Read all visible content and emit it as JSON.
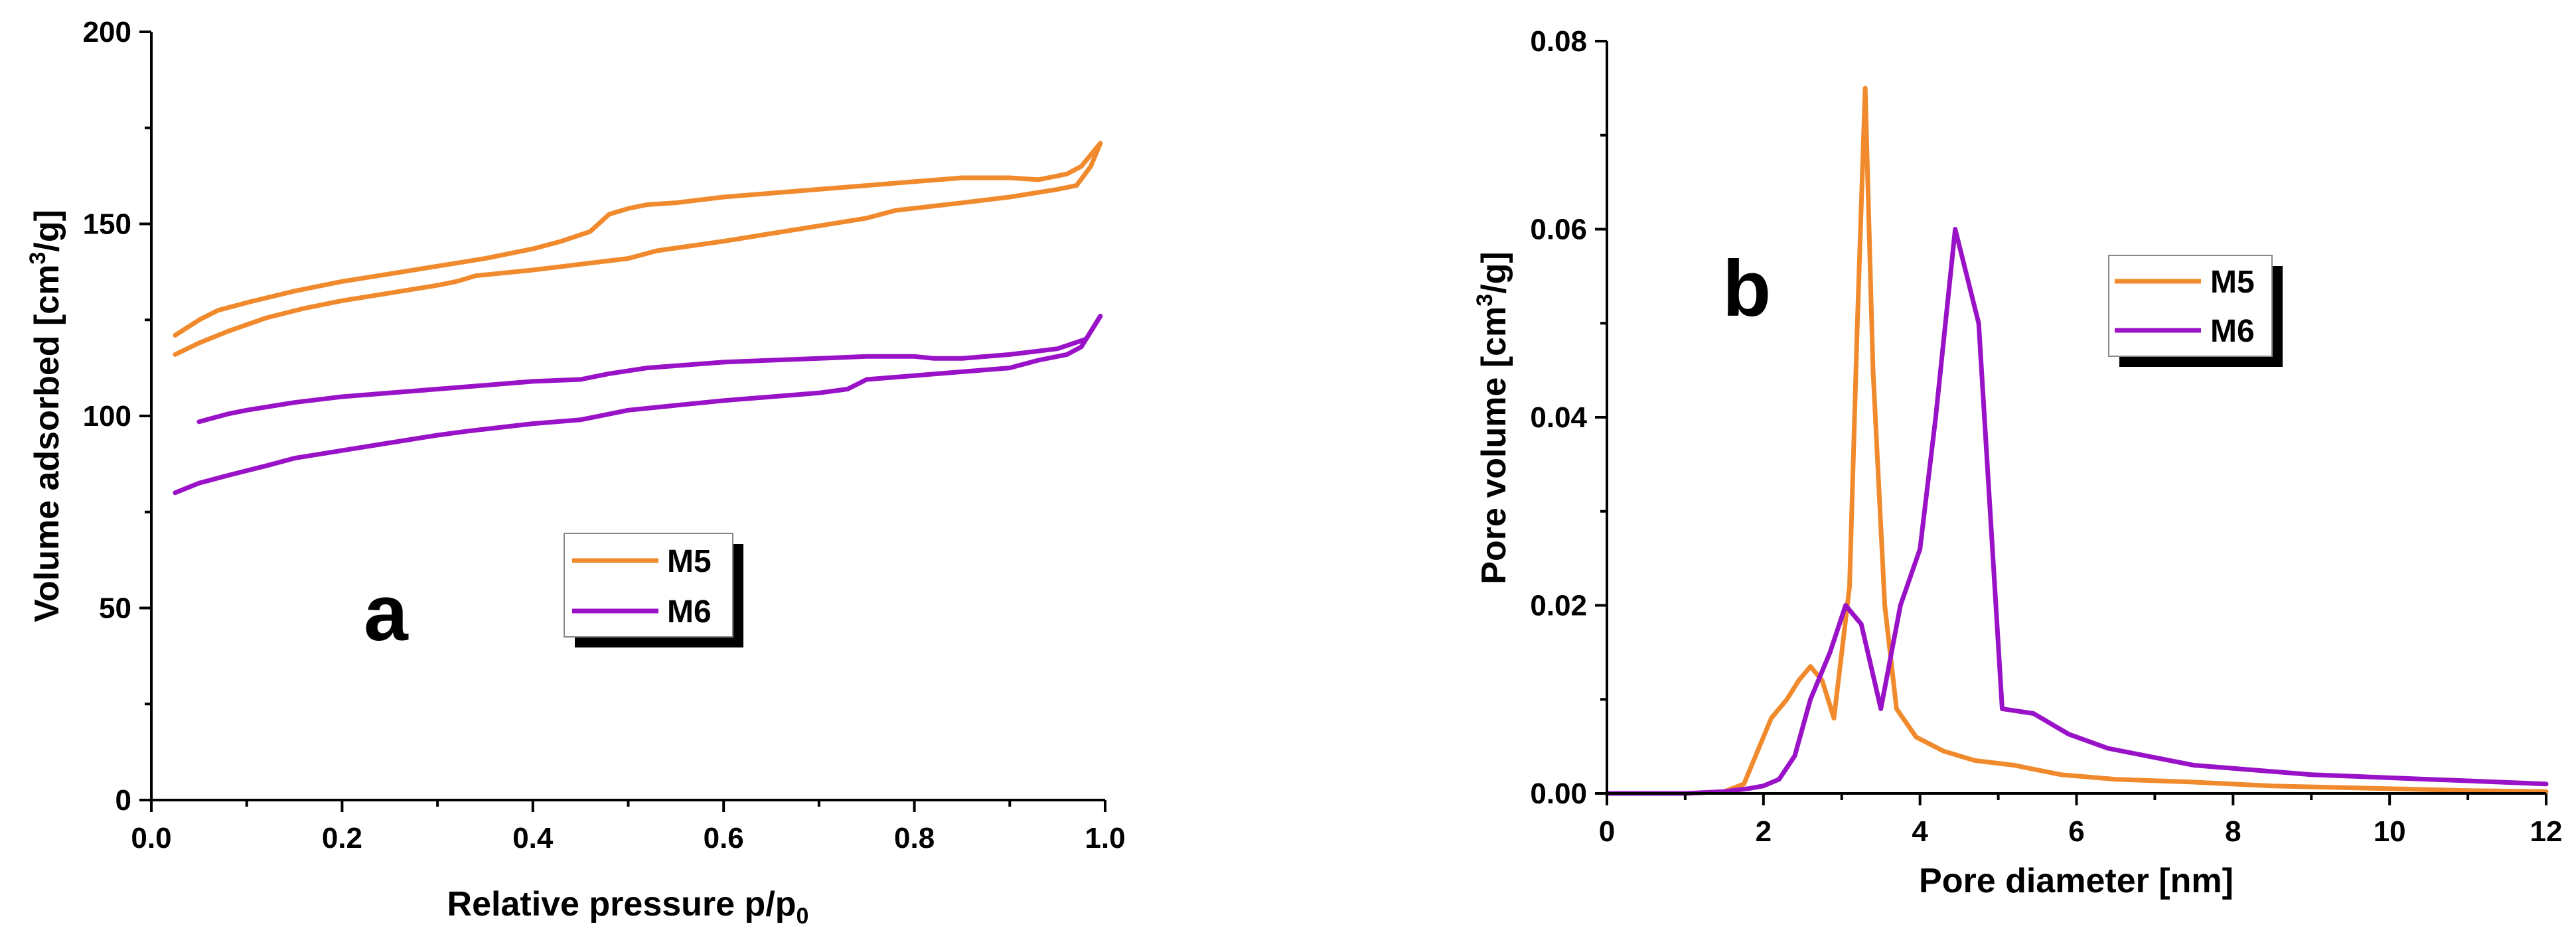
{
  "chart_data": [
    {
      "type": "line",
      "panel_label": "a",
      "xlabel": "Relative pressure p/p",
      "xlabel_sub": "0",
      "ylabel": "Volume adsorbed [cm",
      "ylabel_sup": "3",
      "ylabel_tail": "/g]",
      "xlim": [
        0,
        1.0
      ],
      "ylim": [
        0,
        200
      ],
      "x_ticks": [
        "0.0",
        "0.2",
        "0.4",
        "0.6",
        "0.8",
        "1.0"
      ],
      "y_ticks": [
        "0",
        "50",
        "100",
        "150",
        "200"
      ],
      "legend": {
        "placement": "center-right",
        "entries": [
          "M5",
          "M6"
        ]
      },
      "series": [
        {
          "name": "M5",
          "color": "#F08A2C",
          "adsorption": [
            [
              0.025,
              116
            ],
            [
              0.05,
              119
            ],
            [
              0.08,
              122
            ],
            [
              0.12,
              125.5
            ],
            [
              0.16,
              128
            ],
            [
              0.2,
              130
            ],
            [
              0.25,
              132
            ],
            [
              0.3,
              134
            ],
            [
              0.32,
              135
            ],
            [
              0.34,
              136.5
            ],
            [
              0.4,
              138
            ],
            [
              0.45,
              139.5
            ],
            [
              0.5,
              141
            ],
            [
              0.53,
              143
            ],
            [
              0.6,
              145.5
            ],
            [
              0.65,
              147.5
            ],
            [
              0.7,
              149.5
            ],
            [
              0.75,
              151.5
            ],
            [
              0.78,
              153.5
            ],
            [
              0.85,
              155.5
            ],
            [
              0.9,
              157
            ],
            [
              0.95,
              159
            ],
            [
              0.97,
              160
            ],
            [
              0.985,
              165
            ],
            [
              0.995,
              171
            ]
          ],
          "desorption": [
            [
              0.995,
              171
            ],
            [
              0.975,
              165
            ],
            [
              0.96,
              163
            ],
            [
              0.93,
              161.5
            ],
            [
              0.9,
              162
            ],
            [
              0.85,
              162
            ],
            [
              0.8,
              161
            ],
            [
              0.7,
              159
            ],
            [
              0.6,
              157
            ],
            [
              0.55,
              155.5
            ],
            [
              0.52,
              155
            ],
            [
              0.5,
              154
            ],
            [
              0.48,
              152.5
            ],
            [
              0.46,
              148
            ],
            [
              0.43,
              145.5
            ],
            [
              0.4,
              143.5
            ],
            [
              0.35,
              141
            ],
            [
              0.3,
              139
            ],
            [
              0.25,
              137
            ],
            [
              0.2,
              135
            ],
            [
              0.15,
              132.5
            ],
            [
              0.1,
              129.5
            ],
            [
              0.07,
              127.5
            ],
            [
              0.05,
              125
            ],
            [
              0.025,
              121
            ]
          ]
        },
        {
          "name": "M6",
          "color": "#9A12C8",
          "adsorption": [
            [
              0.025,
              80
            ],
            [
              0.05,
              82.5
            ],
            [
              0.08,
              84.5
            ],
            [
              0.12,
              87
            ],
            [
              0.15,
              89
            ],
            [
              0.2,
              91
            ],
            [
              0.25,
              93
            ],
            [
              0.3,
              95
            ],
            [
              0.33,
              96
            ],
            [
              0.4,
              98
            ],
            [
              0.45,
              99
            ],
            [
              0.5,
              101.5
            ],
            [
              0.6,
              104
            ],
            [
              0.7,
              106
            ],
            [
              0.73,
              107
            ],
            [
              0.75,
              109.5
            ],
            [
              0.8,
              110.5
            ],
            [
              0.85,
              111.5
            ],
            [
              0.9,
              112.5
            ],
            [
              0.93,
              114.5
            ],
            [
              0.96,
              116
            ],
            [
              0.975,
              118
            ],
            [
              0.995,
              126
            ]
          ],
          "desorption": [
            [
              0.995,
              126
            ],
            [
              0.98,
              120
            ],
            [
              0.95,
              117.5
            ],
            [
              0.9,
              116
            ],
            [
              0.85,
              115
            ],
            [
              0.82,
              115
            ],
            [
              0.8,
              115.5
            ],
            [
              0.75,
              115.5
            ],
            [
              0.7,
              115
            ],
            [
              0.6,
              114
            ],
            [
              0.52,
              112.5
            ],
            [
              0.48,
              111
            ],
            [
              0.45,
              109.5
            ],
            [
              0.4,
              109
            ],
            [
              0.35,
              108
            ],
            [
              0.3,
              107
            ],
            [
              0.25,
              106
            ],
            [
              0.2,
              105
            ],
            [
              0.15,
              103.5
            ],
            [
              0.1,
              101.5
            ],
            [
              0.08,
              100.5
            ],
            [
              0.05,
              98.5
            ]
          ]
        }
      ]
    },
    {
      "type": "line",
      "panel_label": "b",
      "xlabel": "Pore diameter [nm]",
      "ylabel": "Pore volume [cm",
      "ylabel_sup": "3",
      "ylabel_tail": "/g]",
      "xlim": [
        0,
        12
      ],
      "ylim": [
        0,
        0.08
      ],
      "x_ticks": [
        "0",
        "2",
        "4",
        "6",
        "8",
        "10",
        "12"
      ],
      "y_ticks": [
        "0.00",
        "0.02",
        "0.04",
        "0.06",
        "0.08"
      ],
      "legend": {
        "placement": "top-right",
        "entries": [
          "M5",
          "M6"
        ]
      },
      "series": [
        {
          "name": "M5",
          "color": "#F08A2C",
          "points": [
            [
              0,
              0
            ],
            [
              1,
              0
            ],
            [
              1.5,
              0.0002
            ],
            [
              1.75,
              0.001
            ],
            [
              1.9,
              0.004
            ],
            [
              2.1,
              0.008
            ],
            [
              2.3,
              0.01
            ],
            [
              2.45,
              0.012
            ],
            [
              2.6,
              0.0135
            ],
            [
              2.75,
              0.012
            ],
            [
              2.9,
              0.008
            ],
            [
              3.0,
              0.015
            ],
            [
              3.1,
              0.022
            ],
            [
              3.2,
              0.05
            ],
            [
              3.3,
              0.075
            ],
            [
              3.4,
              0.045
            ],
            [
              3.55,
              0.02
            ],
            [
              3.7,
              0.009
            ],
            [
              3.95,
              0.006
            ],
            [
              4.3,
              0.0045
            ],
            [
              4.7,
              0.0035
            ],
            [
              5.2,
              0.003
            ],
            [
              5.8,
              0.002
            ],
            [
              6.5,
              0.0015
            ],
            [
              7.5,
              0.0012
            ],
            [
              8.5,
              0.0008
            ],
            [
              10,
              0.0005
            ],
            [
              11,
              0.0003
            ],
            [
              12,
              0.0002
            ]
          ]
        },
        {
          "name": "M6",
          "color": "#9A12C8",
          "points": [
            [
              0,
              0
            ],
            [
              1,
              0
            ],
            [
              1.5,
              0.0002
            ],
            [
              1.8,
              0.0005
            ],
            [
              2.0,
              0.0008
            ],
            [
              2.2,
              0.0015
            ],
            [
              2.4,
              0.004
            ],
            [
              2.6,
              0.01
            ],
            [
              2.85,
              0.015
            ],
            [
              3.05,
              0.02
            ],
            [
              3.25,
              0.018
            ],
            [
              3.5,
              0.009
            ],
            [
              3.75,
              0.02
            ],
            [
              4.0,
              0.026
            ],
            [
              4.2,
              0.04
            ],
            [
              4.45,
              0.06
            ],
            [
              4.75,
              0.05
            ],
            [
              5.05,
              0.009
            ],
            [
              5.45,
              0.0085
            ],
            [
              5.9,
              0.0063
            ],
            [
              6.4,
              0.0048
            ],
            [
              7.5,
              0.003
            ],
            [
              9,
              0.002
            ],
            [
              10.5,
              0.0015
            ],
            [
              12,
              0.001
            ]
          ]
        }
      ]
    }
  ]
}
